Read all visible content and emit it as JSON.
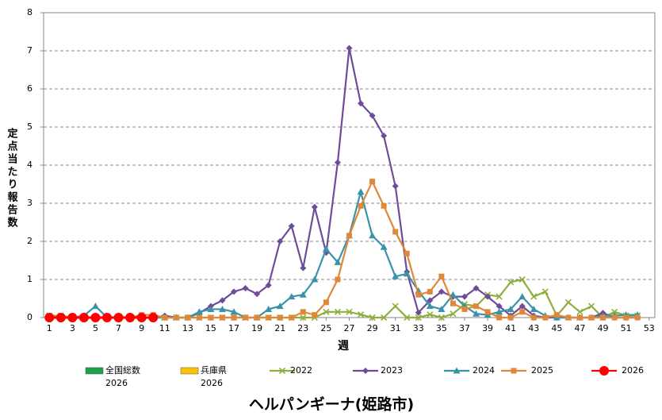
{
  "chart_data": {
    "type": "line",
    "title": "ヘルパンギーナ(姫路市)",
    "x_label": "週",
    "y_label": "定点当たり報告数",
    "x": [
      1,
      2,
      3,
      4,
      5,
      6,
      7,
      8,
      9,
      10,
      11,
      12,
      13,
      14,
      15,
      16,
      17,
      18,
      19,
      20,
      21,
      22,
      23,
      24,
      25,
      26,
      27,
      28,
      29,
      30,
      31,
      32,
      33,
      34,
      35,
      36,
      37,
      38,
      39,
      40,
      41,
      42,
      43,
      44,
      45,
      46,
      47,
      48,
      49,
      50,
      51,
      52
    ],
    "xlim": [
      0.5,
      53.5
    ],
    "xticks": [
      1,
      3,
      5,
      7,
      9,
      11,
      13,
      15,
      17,
      19,
      21,
      23,
      25,
      27,
      29,
      31,
      33,
      35,
      37,
      39,
      41,
      43,
      45,
      47,
      49,
      51,
      53
    ],
    "ylim": [
      0,
      8
    ],
    "yticks": [
      0,
      1,
      2,
      3,
      4,
      5,
      6,
      7,
      8
    ],
    "grid": true,
    "series": [
      {
        "name": "全国総数\n2026",
        "style": "bar",
        "color": "#1aa34a",
        "values": [
          null,
          null,
          null,
          null,
          null,
          null,
          null,
          null,
          null,
          null,
          null,
          null,
          null,
          null,
          null,
          null,
          null,
          null,
          null,
          null,
          null,
          null,
          null,
          null,
          null,
          null,
          null,
          null,
          null,
          null,
          null,
          null,
          null,
          null,
          null,
          null,
          null,
          null,
          null,
          null,
          null,
          null,
          null,
          null,
          null,
          null,
          null,
          null,
          null,
          null,
          null,
          null
        ]
      },
      {
        "name": "兵庫県\n2026",
        "style": "bar",
        "color": "#ffc000",
        "values": [
          null,
          null,
          null,
          null,
          null,
          null,
          null,
          null,
          null,
          null,
          null,
          null,
          null,
          null,
          null,
          null,
          null,
          null,
          null,
          null,
          null,
          null,
          null,
          null,
          null,
          null,
          null,
          null,
          null,
          null,
          null,
          null,
          null,
          null,
          null,
          null,
          null,
          null,
          null,
          null,
          null,
          null,
          null,
          null,
          null,
          null,
          null,
          null,
          null,
          null,
          null,
          null
        ]
      },
      {
        "name": "2022",
        "style": "line",
        "marker": "x",
        "color": "#8faf3c",
        "values": [
          0.05,
          0.05,
          0,
          0,
          0,
          0,
          0,
          0,
          0,
          0,
          0,
          0,
          0,
          0,
          0,
          0,
          0,
          0,
          0,
          0,
          0,
          0,
          0,
          0,
          0.15,
          0.15,
          0.15,
          0.08,
          0,
          0,
          0.3,
          0,
          0,
          0.08,
          0,
          0.1,
          0.35,
          0.3,
          0.6,
          0.55,
          0.93,
          1.0,
          0.55,
          0.68,
          0.05,
          0.4,
          0.15,
          0.3,
          0,
          0.15,
          0.05,
          0.05
        ]
      },
      {
        "name": "2023",
        "style": "line",
        "marker": "diamond",
        "color": "#6e4c9a",
        "values": [
          0,
          0,
          0,
          0,
          0,
          0,
          0,
          0,
          0,
          0,
          0.05,
          0,
          0,
          0.12,
          0.3,
          0.45,
          0.68,
          0.77,
          0.62,
          0.85,
          2.0,
          2.4,
          1.3,
          2.9,
          1.7,
          4.07,
          7.07,
          5.62,
          5.3,
          4.77,
          3.45,
          1.2,
          0.13,
          0.45,
          0.68,
          0.55,
          0.55,
          0.77,
          0.55,
          0.3,
          0.05,
          0.3,
          0.05,
          0,
          0,
          0,
          0,
          0,
          0.12,
          0,
          0,
          0
        ]
      },
      {
        "name": "2024",
        "style": "line",
        "marker": "triangle",
        "color": "#3a93a8",
        "values": [
          0,
          0,
          0,
          0.05,
          0.3,
          0,
          0,
          0,
          0,
          0,
          0,
          0,
          0,
          0.15,
          0.22,
          0.22,
          0.15,
          0,
          0,
          0.22,
          0.3,
          0.55,
          0.6,
          1.0,
          1.8,
          1.45,
          2.15,
          3.3,
          2.15,
          1.85,
          1.08,
          1.15,
          0.7,
          0.3,
          0.22,
          0.6,
          0.3,
          0.1,
          0.07,
          0.15,
          0.22,
          0.55,
          0.22,
          0.05,
          0,
          0,
          0,
          0,
          0.05,
          0.05,
          0.07,
          0.07
        ]
      },
      {
        "name": "2025",
        "style": "line",
        "marker": "square",
        "color": "#e0883a",
        "values": [
          0.03,
          0,
          0,
          0,
          0,
          0,
          0,
          0,
          0.07,
          0.07,
          0,
          0,
          0,
          0,
          0,
          0,
          0,
          0,
          0,
          0,
          0,
          0,
          0.15,
          0.07,
          0.4,
          1.0,
          2.15,
          2.93,
          3.57,
          2.93,
          2.25,
          1.68,
          0.6,
          0.68,
          1.08,
          0.37,
          0.22,
          0.3,
          0.15,
          0,
          0,
          0.15,
          0,
          0,
          0.07,
          0,
          0,
          0,
          0,
          0,
          0,
          0
        ]
      },
      {
        "name": "2026",
        "style": "line",
        "marker": "circle",
        "color": "#ff0000",
        "values": [
          0,
          0,
          0,
          0,
          0,
          0,
          0,
          0,
          0,
          0,
          null,
          null,
          null,
          null,
          null,
          null,
          null,
          null,
          null,
          null,
          null,
          null,
          null,
          null,
          null,
          null,
          null,
          null,
          null,
          null,
          null,
          null,
          null,
          null,
          null,
          null,
          null,
          null,
          null,
          null,
          null,
          null,
          null,
          null,
          null,
          null,
          null,
          null,
          null,
          null,
          null,
          null
        ]
      }
    ]
  }
}
